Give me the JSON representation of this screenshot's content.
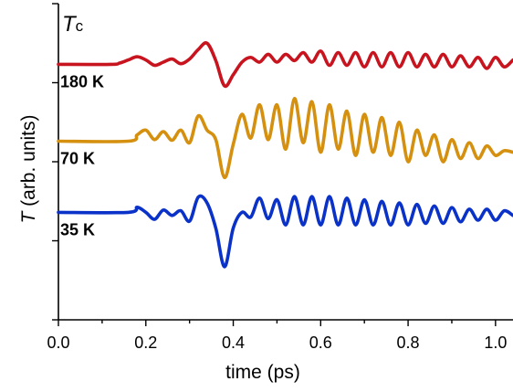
{
  "chart_data": {
    "type": "line",
    "title": "",
    "corner_label": {
      "main": "T",
      "sub": "c"
    },
    "xlabel": "time (ps)",
    "ylabel_italic": "T",
    "ylabel_rest": " (arb. units)",
    "xlim": [
      0.0,
      1.04
    ],
    "ylim": [
      0,
      1
    ],
    "x_ticks": [
      {
        "value": 0.0,
        "label": "0.0"
      },
      {
        "value": 0.2,
        "label": "0.2"
      },
      {
        "value": 0.4,
        "label": "0.4"
      },
      {
        "value": 0.6,
        "label": "0.6"
      },
      {
        "value": 0.8,
        "label": "0.8"
      },
      {
        "value": 1.0,
        "label": "1.0"
      }
    ],
    "x_minor_ticks": [
      0.1,
      0.3,
      0.5,
      0.7,
      0.9
    ],
    "y_ticks": [
      0.0,
      0.25,
      0.5,
      0.75,
      1.0
    ],
    "grid": false,
    "legend": "none",
    "series": [
      {
        "name": "180 K",
        "color": "#c8141e",
        "x": [
          0.0,
          0.12,
          0.14,
          0.16,
          0.18,
          0.2,
          0.22,
          0.24,
          0.26,
          0.28,
          0.3,
          0.32,
          0.34,
          0.36,
          0.38,
          0.4,
          0.42,
          0.44,
          0.46,
          0.48,
          0.5,
          0.52,
          0.54,
          0.56,
          0.58,
          0.6,
          0.62,
          0.64,
          0.66,
          0.68,
          0.7,
          0.72,
          0.74,
          0.76,
          0.78,
          0.8,
          0.82,
          0.84,
          0.86,
          0.88,
          0.9,
          0.92,
          0.94,
          0.96,
          0.98,
          1.0,
          1.02,
          1.04
        ],
        "y": [
          0.808,
          0.808,
          0.812,
          0.822,
          0.832,
          0.822,
          0.805,
          0.815,
          0.825,
          0.81,
          0.825,
          0.855,
          0.875,
          0.82,
          0.74,
          0.775,
          0.815,
          0.83,
          0.815,
          0.84,
          0.815,
          0.84,
          0.82,
          0.845,
          0.815,
          0.85,
          0.805,
          0.845,
          0.805,
          0.845,
          0.8,
          0.845,
          0.8,
          0.845,
          0.8,
          0.845,
          0.8,
          0.84,
          0.8,
          0.84,
          0.8,
          0.835,
          0.8,
          0.83,
          0.795,
          0.83,
          0.8,
          0.822
        ]
      },
      {
        "name": "70 K",
        "color": "#d4900e",
        "x": [
          0.0,
          0.16,
          0.18,
          0.2,
          0.22,
          0.24,
          0.26,
          0.28,
          0.3,
          0.32,
          0.34,
          0.36,
          0.38,
          0.4,
          0.42,
          0.44,
          0.46,
          0.48,
          0.5,
          0.52,
          0.54,
          0.56,
          0.58,
          0.6,
          0.62,
          0.64,
          0.66,
          0.68,
          0.7,
          0.72,
          0.74,
          0.76,
          0.78,
          0.8,
          0.82,
          0.84,
          0.86,
          0.88,
          0.9,
          0.92,
          0.94,
          0.96,
          0.98,
          1.0,
          1.02,
          1.04
        ],
        "y": [
          0.565,
          0.565,
          0.585,
          0.6,
          0.57,
          0.595,
          0.568,
          0.6,
          0.56,
          0.645,
          0.6,
          0.57,
          0.45,
          0.555,
          0.65,
          0.575,
          0.68,
          0.57,
          0.68,
          0.54,
          0.7,
          0.56,
          0.69,
          0.53,
          0.68,
          0.54,
          0.66,
          0.52,
          0.65,
          0.53,
          0.64,
          0.52,
          0.625,
          0.5,
          0.6,
          0.52,
          0.585,
          0.5,
          0.57,
          0.51,
          0.56,
          0.51,
          0.55,
          0.52,
          0.535,
          0.53
        ]
      },
      {
        "name": "35 K",
        "color": "#0a32c8",
        "x": [
          0.0,
          0.16,
          0.18,
          0.2,
          0.22,
          0.24,
          0.26,
          0.28,
          0.3,
          0.32,
          0.34,
          0.36,
          0.38,
          0.4,
          0.42,
          0.44,
          0.46,
          0.48,
          0.5,
          0.52,
          0.54,
          0.56,
          0.58,
          0.6,
          0.62,
          0.64,
          0.66,
          0.68,
          0.7,
          0.72,
          0.74,
          0.76,
          0.78,
          0.8,
          0.82,
          0.84,
          0.86,
          0.88,
          0.9,
          0.92,
          0.94,
          0.96,
          0.98,
          1.0,
          1.02,
          1.04
        ],
        "y": [
          0.34,
          0.34,
          0.356,
          0.34,
          0.318,
          0.347,
          0.33,
          0.345,
          0.312,
          0.388,
          0.37,
          0.29,
          0.168,
          0.29,
          0.34,
          0.325,
          0.385,
          0.32,
          0.38,
          0.3,
          0.39,
          0.3,
          0.39,
          0.3,
          0.39,
          0.3,
          0.385,
          0.3,
          0.38,
          0.3,
          0.375,
          0.3,
          0.37,
          0.3,
          0.365,
          0.305,
          0.36,
          0.305,
          0.355,
          0.31,
          0.35,
          0.315,
          0.35,
          0.315,
          0.345,
          0.33
        ]
      }
    ]
  }
}
